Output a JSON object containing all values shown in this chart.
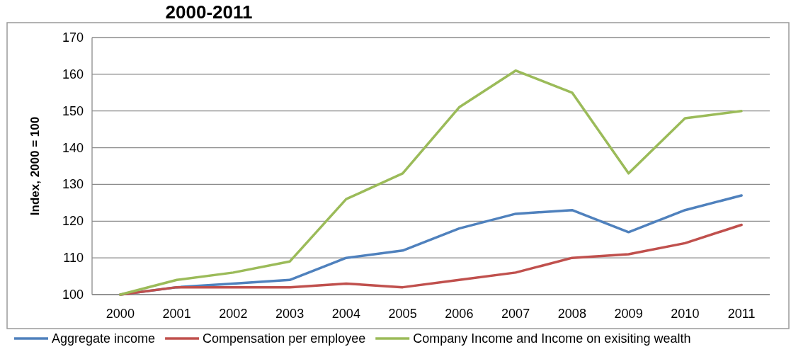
{
  "chart_data": {
    "type": "line",
    "title": "2000-2011",
    "ylabel": "Index, 2000 = 100",
    "categories": [
      "2000",
      "2001",
      "2002",
      "2003",
      "2004",
      "2005",
      "2006",
      "2007",
      "2008",
      "2009",
      "2010",
      "2011"
    ],
    "series": [
      {
        "name": "Aggregate income",
        "color": "#4f81bd",
        "values": [
          100,
          102,
          103,
          104,
          110,
          112,
          118,
          122,
          123,
          117,
          123,
          127
        ]
      },
      {
        "name": "Compensation per employee",
        "color": "#c0504d",
        "values": [
          100,
          102,
          102,
          102,
          103,
          102,
          104,
          106,
          110,
          111,
          114,
          119
        ]
      },
      {
        "name": "Company Income and Income on exisiting wealth",
        "color": "#9bbb59",
        "values": [
          100,
          104,
          106,
          109,
          126,
          133,
          151,
          161,
          155,
          133,
          148,
          150
        ]
      }
    ],
    "ylim": [
      100,
      170
    ],
    "yticks": [
      100,
      110,
      120,
      130,
      140,
      150,
      160,
      170
    ],
    "grid": "y",
    "legend": "bottom",
    "line_style": "solid"
  }
}
